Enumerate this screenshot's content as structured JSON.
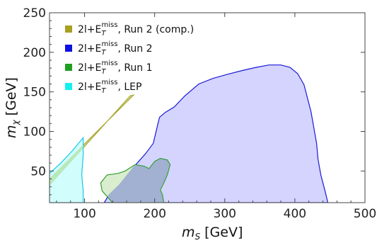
{
  "chart_data": {
    "type": "area",
    "xlabel": {
      "main": "m",
      "sub": "S",
      "unit": "[GeV]"
    },
    "ylabel": {
      "main": "m",
      "sub": "χ",
      "unit": "[GeV]"
    },
    "xlim": [
      50,
      500
    ],
    "ylim": [
      10,
      250
    ],
    "xticks": [
      100,
      200,
      300,
      400,
      500
    ],
    "yticks": [
      50,
      100,
      150,
      200,
      250
    ],
    "legend_position": "top-left",
    "series": [
      {
        "name_main": "2l+E",
        "name_sub": "T",
        "name_sup": "miss",
        "name_suffix": ", Run 2 (comp.)",
        "fill": "#cfcf8a",
        "stroke": "#a8a830",
        "legend_color": "#a8a020",
        "polygon": [
          [
            50,
            32
          ],
          [
            165,
            145
          ],
          [
            170,
            146
          ],
          [
            52,
            42
          ],
          [
            50,
            40
          ]
        ]
      },
      {
        "name_main": "2l+E",
        "name_sub": "T",
        "name_sup": "miss",
        "name_suffix": ", Run 2",
        "fill": "#c8c8ff",
        "stroke": "#1a1ad4",
        "legend_color": "#1010e0",
        "polygon": [
          [
            128,
            10
          ],
          [
            135,
            20
          ],
          [
            150,
            33
          ],
          [
            170,
            55
          ],
          [
            187,
            72
          ],
          [
            198,
            85
          ],
          [
            205,
            111
          ],
          [
            207,
            118
          ],
          [
            215,
            124
          ],
          [
            228,
            131
          ],
          [
            243,
            145
          ],
          [
            263,
            160
          ],
          [
            283,
            167
          ],
          [
            303,
            172
          ],
          [
            325,
            177
          ],
          [
            345,
            181
          ],
          [
            363,
            184
          ],
          [
            380,
            184
          ],
          [
            393,
            181
          ],
          [
            404,
            173
          ],
          [
            413,
            159
          ],
          [
            423,
            125
          ],
          [
            431,
            85
          ],
          [
            433,
            65
          ],
          [
            437,
            45
          ],
          [
            443,
            25
          ],
          [
            447,
            10
          ]
        ]
      },
      {
        "name_main": "2l+E",
        "name_sub": "T",
        "name_sup": "miss",
        "name_suffix": ", Run 1",
        "fill": "#cfe8c0",
        "stroke": "#2fa02f",
        "legend_color": "#20a020",
        "polygon": [
          [
            140,
            10
          ],
          [
            125,
            25
          ],
          [
            123,
            35
          ],
          [
            132,
            45
          ],
          [
            148,
            47
          ],
          [
            158,
            50
          ],
          [
            172,
            58
          ],
          [
            185,
            56
          ],
          [
            192,
            53
          ],
          [
            200,
            62
          ],
          [
            208,
            66
          ],
          [
            218,
            64
          ],
          [
            222,
            58
          ],
          [
            218,
            45
          ],
          [
            212,
            33
          ],
          [
            208,
            26
          ],
          [
            211,
            20
          ],
          [
            213,
            10
          ]
        ]
      },
      {
        "name_main": "2l+E",
        "name_sub": "T",
        "name_sup": "miss",
        "name_suffix": ", LEP",
        "fill": "#c4fcfc",
        "stroke": "#16c8e8",
        "legend_color": "#14f0f0",
        "polygon": [
          [
            50,
            10
          ],
          [
            50,
            47
          ],
          [
            66,
            60
          ],
          [
            82,
            75
          ],
          [
            98,
            92
          ],
          [
            98,
            70
          ],
          [
            96,
            45
          ],
          [
            98,
            25
          ],
          [
            98,
            10
          ]
        ]
      }
    ],
    "overlap_colors": {
      "runs_overlap_fill": "#a2b0d2",
      "lep_comp_overlap_fill": "#b8e8b8"
    }
  }
}
